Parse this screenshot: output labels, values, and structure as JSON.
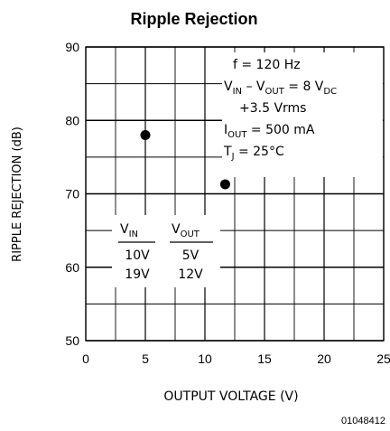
{
  "chart_data": {
    "type": "scatter",
    "title": "Ripple Rejection",
    "xlabel": "OUTPUT VOLTAGE (V)",
    "ylabel": "RIPPLE REJECTION (dB)",
    "xlim": [
      0,
      25
    ],
    "ylim": [
      50,
      90
    ],
    "x_ticks": [
      0,
      5,
      10,
      15,
      20,
      25
    ],
    "y_ticks": [
      50,
      60,
      70,
      80,
      90
    ],
    "grid": true,
    "points": [
      {
        "x": 5,
        "y": 78
      },
      {
        "x": 11.7,
        "y": 71.3
      }
    ],
    "conditions": {
      "line1": "f = 120 Hz",
      "line2": {
        "a": "V",
        "a_sub": "IN",
        "b": " – V",
        "b_sub": "OUT",
        "c": " = 8 V",
        "c_sub": "DC"
      },
      "line3": "+3.5 Vrms",
      "line4": {
        "a": "I",
        "a_sub": "OUT",
        "b": " = 500 mA"
      },
      "line5": {
        "a": "T",
        "a_sub": "J",
        "b": " = 25°C"
      }
    },
    "table": {
      "col1_header": {
        "main": "V",
        "sub": "IN"
      },
      "col2_header": {
        "main": "V",
        "sub": "OUT"
      },
      "rows": [
        {
          "vin": "10V",
          "vout": "5V"
        },
        {
          "vin": "19V",
          "vout": "12V"
        }
      ]
    },
    "figure_id": "01048412"
  }
}
